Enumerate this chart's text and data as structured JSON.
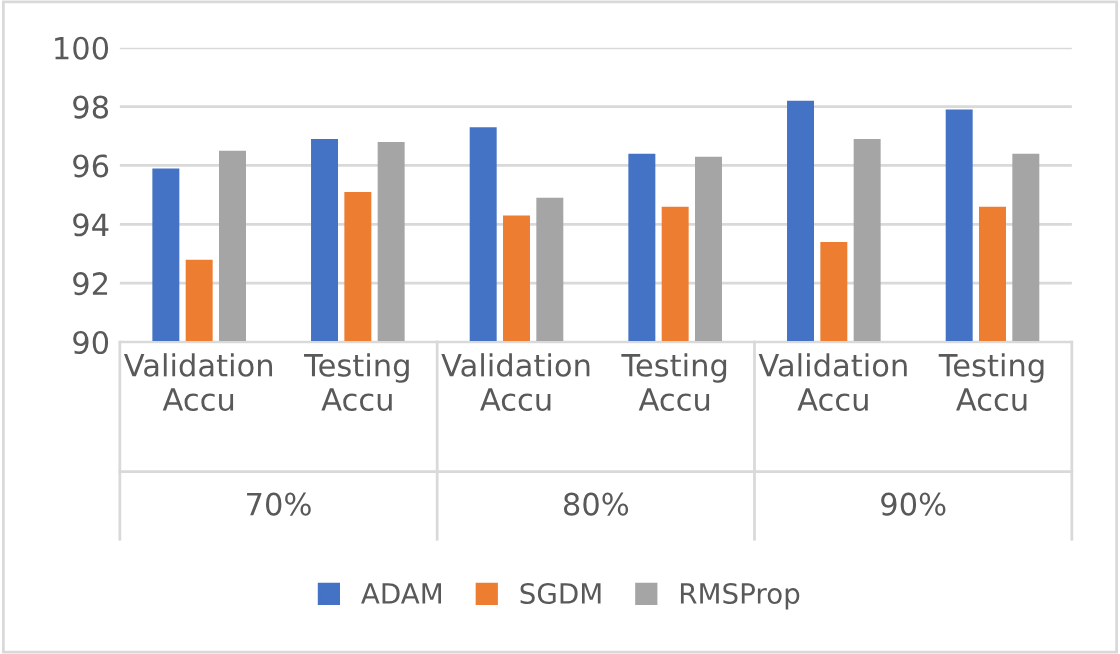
{
  "chart_data": {
    "type": "bar",
    "categories": [
      "Validation\nAccu",
      "Testing\nAccu",
      "Validation\nAccu",
      "Testing\nAccu",
      "Validation\nAccu",
      "Testing\nAccu"
    ],
    "series": [
      {
        "name": "ADAM",
        "color": "#4472c4",
        "values": [
          95.9,
          96.9,
          97.3,
          96.4,
          98.2,
          97.9
        ]
      },
      {
        "name": "SGDM",
        "color": "#ed7d31",
        "values": [
          92.8,
          95.1,
          94.3,
          94.6,
          93.4,
          94.6
        ]
      },
      {
        "name": "RMSProp",
        "color": "#a5a5a5",
        "values": [
          96.5,
          96.8,
          94.9,
          96.3,
          96.9,
          96.4
        ]
      }
    ],
    "annotations": [
      "70%",
      "80%",
      "90%"
    ],
    "ylim": [
      90,
      100
    ],
    "yticks": [
      90,
      92,
      94,
      96,
      98,
      100
    ],
    "grid": "y",
    "legend": "bottom"
  }
}
